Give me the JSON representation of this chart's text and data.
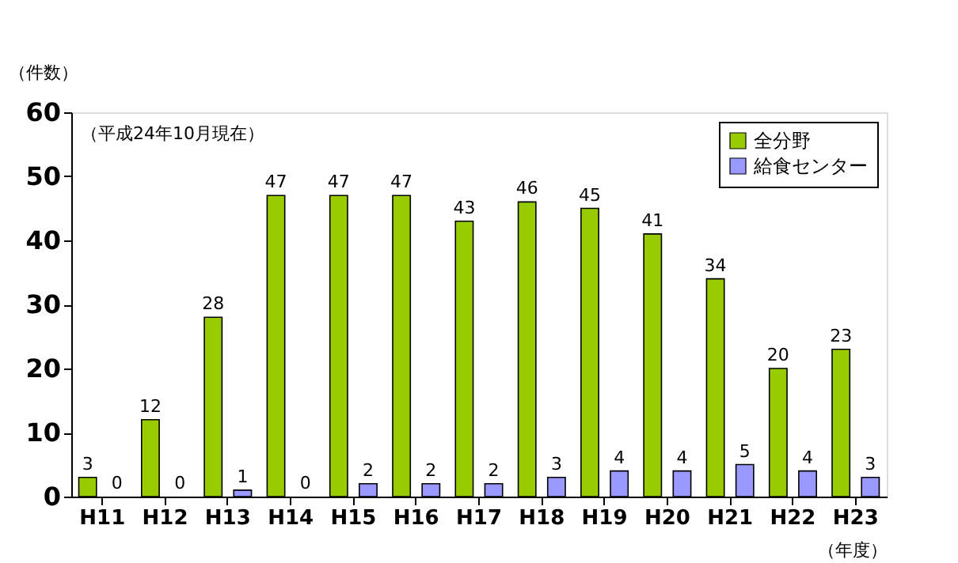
{
  "chart_data": {
    "type": "bar",
    "ylabel": "（件数）",
    "xlabel": "（年度）",
    "categories": [
      "H11",
      "H12",
      "H13",
      "H14",
      "H15",
      "H16",
      "H17",
      "H18",
      "H19",
      "H20",
      "H21",
      "H22",
      "H23"
    ],
    "series": [
      {
        "name": "全分野",
        "color": "#99cc00",
        "values": [
          3,
          12,
          28,
          47,
          47,
          47,
          43,
          46,
          45,
          41,
          34,
          20,
          23
        ]
      },
      {
        "name": "給食センター",
        "color": "#9999ff",
        "values": [
          0,
          0,
          1,
          0,
          2,
          2,
          2,
          3,
          4,
          4,
          5,
          4,
          3
        ]
      }
    ],
    "ylim": [
      0,
      60
    ],
    "yticks": [
      0,
      10,
      20,
      30,
      40,
      50,
      60
    ],
    "grid": false,
    "legend": "top right",
    "data_labels": true,
    "annotations": [
      "（平成24年10月現在）"
    ]
  }
}
